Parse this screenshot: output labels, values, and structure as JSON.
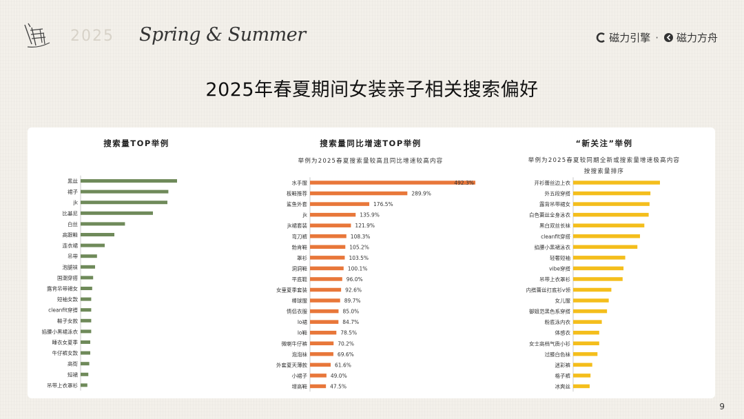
{
  "header": {
    "ghost_text": "2025",
    "season": "Spring & Summer",
    "brand_left": "磁力引擎",
    "brand_sep": "·",
    "brand_right": "磁力方舟"
  },
  "title": "2025年春夏期间女装亲子相关搜索偏好",
  "page_number": "9",
  "colors": {
    "green": "#6f8a5a",
    "orange": "#e8773a",
    "yellow": "#f4be1c"
  },
  "chart_data": [
    {
      "type": "bar",
      "orientation": "horizontal",
      "title": "搜索量TOP举例",
      "subtitle": "",
      "categories": [
        "黑丝",
        "裙子",
        "jk",
        "比基尼",
        "白丝",
        "高跟鞋",
        "连衣裙",
        "吊带",
        "泡腿袜",
        "国潮穿搭",
        "露背吊带裙女",
        "短袖女款",
        "cleanfit穿搭",
        "鞋子女款",
        "掐腰小黑裙泳衣",
        "睡衣女夏季",
        "牛仔裤女款",
        "高街",
        "短裙",
        "吊带上衣罩衫"
      ],
      "values": [
        100,
        91,
        90,
        75,
        46,
        35,
        25,
        17,
        15,
        13,
        12,
        11,
        11,
        11,
        11,
        10,
        10,
        9,
        8,
        7
      ],
      "value_labels": false,
      "color": "#6f8a5a"
    },
    {
      "type": "bar",
      "orientation": "horizontal",
      "title": "搜索量同比增速TOP举例",
      "subtitle": "举例为2025春夏搜索量较高且同比增速较高内容",
      "categories": [
        "水手服",
        "板鞋推荐",
        "鲨鱼外套",
        "jk",
        "jk裙套装",
        "弯刀裤",
        "勃肯鞋",
        "罩衫",
        "洞洞鞋",
        "平底鞋",
        "女童夏季套装",
        "棒球服",
        "情侣衣服",
        "lo裙",
        "lo鞋",
        "微喇牛仔裤",
        "泡泡袜",
        "外套夏天薄款",
        "小裙子",
        "增高鞋"
      ],
      "values": [
        492.3,
        289.9,
        176.5,
        135.9,
        121.9,
        108.3,
        105.2,
        103.5,
        100.1,
        96.0,
        92.6,
        89.7,
        85.0,
        84.7,
        78.5,
        70.2,
        69.6,
        61.6,
        49.0,
        47.5
      ],
      "labels": [
        "492.3%",
        "289.9%",
        "176.5%",
        "135.9%",
        "121.9%",
        "108.3%",
        "105.2%",
        "103.5%",
        "100.1%",
        "96.0%",
        "92.6%",
        "89.7%",
        "85.0%",
        "84.7%",
        "78.5%",
        "70.2%",
        "69.6%",
        "61.6%",
        "49.0%",
        "47.5%"
      ],
      "value_labels": true,
      "color": "#e8773a"
    },
    {
      "type": "bar",
      "orientation": "horizontal",
      "title": "“新关注”举例",
      "subtitle": "举例为2025春夏较同期全新或搜索量增速极高内容",
      "subtitle2": "按搜索量排序",
      "categories": [
        "开衫蕾丝边上衣",
        "外五段穿搭",
        "露背吊带裙女",
        "白色蕾丝全身泳衣",
        "黑白双丝长袜",
        "cleanfit穿搭",
        "掐腰小黑裙泳衣",
        "轻奢短袖",
        "vibe穿搭",
        "吊带上衣罩衫",
        "内搭蕾丝打底衫v领",
        "女儿服",
        "御姐范黑色系穿搭",
        "粉底泳内衣",
        "体感衣",
        "女士高档气质小衫",
        "过膝白色袜",
        "迷彩裤",
        "格子裤",
        "冰爽丝"
      ],
      "values": [
        100,
        89,
        88,
        87,
        82,
        77,
        74,
        60,
        58,
        57,
        44,
        41,
        39,
        33,
        30,
        30,
        28,
        22,
        20,
        19
      ],
      "value_labels": false,
      "color": "#f4be1c"
    }
  ]
}
